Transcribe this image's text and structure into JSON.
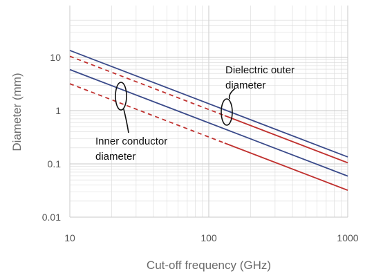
{
  "chart_data": {
    "type": "line",
    "title": "",
    "xlabel": "Cut-off frequency (GHz)",
    "ylabel": "Diameter (mm)",
    "x_scale": "log",
    "y_scale": "log",
    "xlim": [
      10,
      1000
    ],
    "ylim": [
      0.01,
      50
    ],
    "x_ticks": [
      10,
      100,
      1000
    ],
    "x_tick_labels": [
      "10",
      "100",
      "1000"
    ],
    "y_ticks": [
      0.01,
      0.1,
      1,
      10
    ],
    "y_tick_labels": [
      "0.01",
      "0.1",
      "1",
      "10"
    ],
    "grid": true,
    "legend": "none",
    "colors": {
      "blue": "#3a4a8a",
      "red": "#c0312f",
      "grid": "#d9d9d9"
    },
    "series": [
      {
        "group": "Dielectric outer diameter",
        "color": "#3a4a8a",
        "style": "solid",
        "x": [
          10,
          1000
        ],
        "y": [
          13.5,
          0.135
        ]
      },
      {
        "group": "Dielectric outer diameter",
        "color": "#c0312f",
        "style": "dashed-then-solid",
        "x": [
          10,
          1000
        ],
        "y": [
          10.5,
          0.105
        ],
        "dash_until_x": 130
      },
      {
        "group": "Inner conductor diameter",
        "color": "#3a4a8a",
        "style": "solid",
        "x": [
          10,
          1000
        ],
        "y": [
          5.9,
          0.059
        ]
      },
      {
        "group": "Inner conductor diameter",
        "color": "#c0312f",
        "style": "dashed-then-solid",
        "x": [
          10,
          1000
        ],
        "y": [
          3.2,
          0.032
        ],
        "dash_until_x": 130
      }
    ],
    "annotations": [
      {
        "lines": [
          "Dielectric outer",
          "diameter"
        ]
      },
      {
        "lines": [
          "Inner conductor",
          "diameter"
        ]
      }
    ]
  }
}
